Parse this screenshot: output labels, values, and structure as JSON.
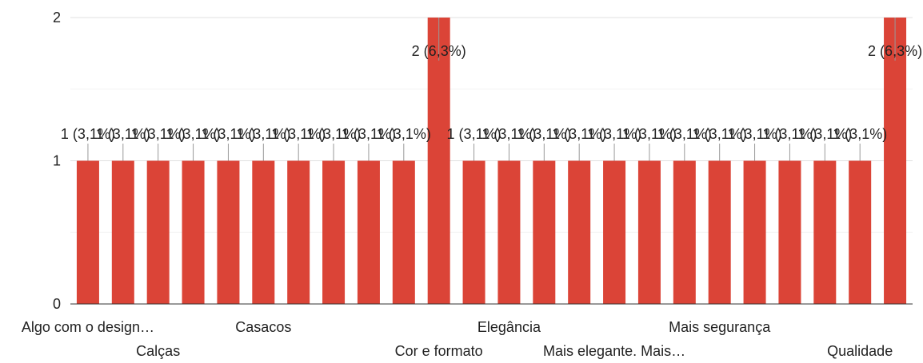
{
  "chart_data": {
    "type": "bar",
    "title": "",
    "xlabel": "",
    "ylabel": "",
    "ylim": [
      0,
      2
    ],
    "yticks": [
      0,
      1,
      2
    ],
    "grid": true,
    "legend": "none",
    "bar_color": "#db4437",
    "categories": [
      "Algo com o design…",
      "",
      "Calças",
      "",
      "",
      "Casacos",
      "",
      "",
      "",
      "",
      "Cor e formato",
      "",
      "Elegância",
      "",
      "",
      "Mais elegante. Mais…",
      "",
      "",
      "Mais segurança",
      "",
      "",
      "",
      "Qualidade",
      ""
    ],
    "values": [
      1,
      1,
      1,
      1,
      1,
      1,
      1,
      1,
      1,
      1,
      2,
      1,
      1,
      1,
      1,
      1,
      1,
      1,
      1,
      1,
      1,
      1,
      1,
      2
    ],
    "data_labels": [
      "1 (3,1%)",
      "1 (3,1%)",
      "1 (3,1%)",
      "1 (3,1%)",
      "1 (3,1%)",
      "1 (3,1%)",
      "1 (3,1%)",
      "1 (3,1%)",
      "1 (3,1%)",
      "1 (3,1%)",
      "2 (6,3%)",
      "1 (3,1%)",
      "1 (3,1%)",
      "1 (3,1%)",
      "1 (3,1%)",
      "1 (3,1%)",
      "1 (3,1%)",
      "1 (3,1%)",
      "1 (3,1%)",
      "1 (3,1%)",
      "1 (3,1%)",
      "1 (3,1%)",
      "1 (3,1%)",
      "2 (6,3%)"
    ]
  }
}
